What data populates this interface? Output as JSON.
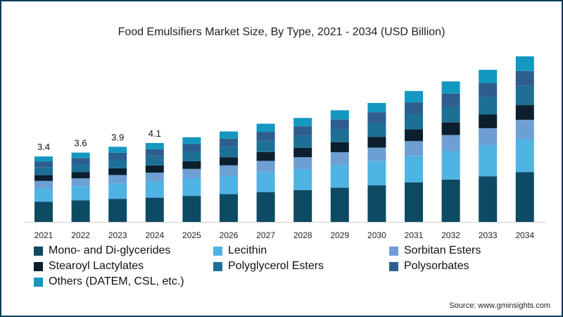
{
  "chart_data": {
    "type": "stacked-bar",
    "title": "Food Emulsifiers Market Size, By Type, 2021 - 2034 (USD Billion)",
    "xlabel": "",
    "ylabel": "",
    "ylim": [
      0,
      10
    ],
    "categories": [
      "2021",
      "2022",
      "2023",
      "2024",
      "2025",
      "2026",
      "2027",
      "2028",
      "2029",
      "2030",
      "2031",
      "2032",
      "2033",
      "2034"
    ],
    "totals": [
      3.4,
      3.6,
      3.9,
      4.1,
      4.4,
      4.7,
      5.1,
      5.4,
      5.8,
      6.2,
      6.8,
      7.3,
      7.9,
      8.6
    ],
    "total_labels": [
      "3.4",
      "3.6",
      "3.9",
      "4.1"
    ],
    "series": [
      {
        "name": "Mono- and Di-glycerides",
        "color": "#0d4a63",
        "values": [
          1.05,
          1.12,
          1.2,
          1.26,
          1.35,
          1.45,
          1.55,
          1.65,
          1.78,
          1.9,
          2.05,
          2.2,
          2.37,
          2.58
        ]
      },
      {
        "name": "Lecithin",
        "color": "#4fb3e3",
        "values": [
          0.7,
          0.74,
          0.8,
          0.84,
          0.9,
          0.96,
          1.04,
          1.1,
          1.18,
          1.26,
          1.38,
          1.48,
          1.6,
          1.74
        ]
      },
      {
        "name": "Sorbitan Esters",
        "color": "#6e9fd4",
        "values": [
          0.38,
          0.4,
          0.44,
          0.46,
          0.5,
          0.53,
          0.58,
          0.61,
          0.66,
          0.7,
          0.77,
          0.83,
          0.9,
          0.98
        ]
      },
      {
        "name": "Stearoyl Lactylates",
        "color": "#0b1f2e",
        "values": [
          0.3,
          0.32,
          0.35,
          0.37,
          0.4,
          0.42,
          0.46,
          0.49,
          0.52,
          0.56,
          0.61,
          0.66,
          0.71,
          0.77
        ]
      },
      {
        "name": "Polyglycerol Esters",
        "color": "#1e6f96",
        "values": [
          0.4,
          0.42,
          0.45,
          0.48,
          0.51,
          0.55,
          0.59,
          0.63,
          0.67,
          0.72,
          0.79,
          0.85,
          0.92,
          1.0
        ]
      },
      {
        "name": "Polysorbates",
        "color": "#2d5e8e",
        "values": [
          0.3,
          0.32,
          0.35,
          0.37,
          0.39,
          0.42,
          0.46,
          0.48,
          0.52,
          0.56,
          0.61,
          0.65,
          0.71,
          0.77
        ]
      },
      {
        "name": "Others (DATEM, CSL, etc.)",
        "color": "#1498c1",
        "values": [
          0.27,
          0.28,
          0.31,
          0.32,
          0.35,
          0.37,
          0.42,
          0.44,
          0.47,
          0.48,
          0.59,
          0.63,
          0.69,
          0.76
        ]
      }
    ],
    "legend_position": "bottom"
  },
  "source": "Source: www.gminsights.com"
}
